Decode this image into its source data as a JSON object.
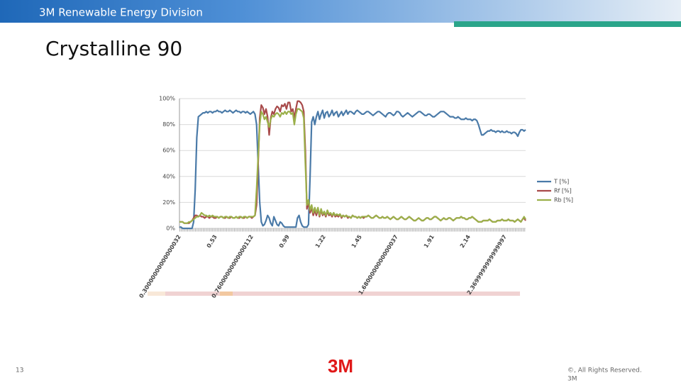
{
  "slide": {
    "banner": "3M Renewable Energy Division",
    "title": "Crystalline 90",
    "page_number": "13",
    "logo": "3M",
    "copyright": "©, All Rights Reserved.",
    "copyright_line2": "3M"
  },
  "chart_data": {
    "type": "line",
    "categories": [
      "0.30000000000000032",
      null,
      null,
      null,
      null,
      null,
      null,
      null,
      null,
      null,
      null,
      null,
      null,
      null,
      null,
      null,
      null,
      null,
      null,
      null,
      null,
      null,
      null,
      "0.53",
      null,
      null,
      null,
      null,
      null,
      null,
      null,
      null,
      null,
      null,
      null,
      null,
      null,
      null,
      null,
      null,
      null,
      null,
      null,
      null,
      null,
      null,
      "0.76000000000000112",
      null,
      null,
      null,
      null,
      null,
      null,
      null,
      null,
      null,
      null,
      null,
      null,
      null,
      null,
      null,
      null,
      null,
      null,
      null,
      null,
      null,
      null,
      "0.99",
      null,
      null,
      null,
      null,
      null,
      null,
      null,
      null,
      null,
      null,
      null,
      null,
      null,
      null,
      null,
      null,
      null,
      null,
      null,
      null,
      null,
      null,
      "1.22",
      null,
      null,
      null,
      null,
      null,
      null,
      null,
      null,
      null,
      null,
      null,
      null,
      null,
      null,
      null,
      null,
      null,
      null,
      null,
      null,
      null,
      null,
      "1.45",
      null,
      null,
      null,
      null,
      null,
      null,
      null,
      null,
      null,
      null,
      null,
      null,
      null,
      null,
      null,
      null,
      null,
      null,
      null,
      null,
      null,
      null,
      "1.6800000000000037",
      null,
      null,
      null,
      null,
      null,
      null,
      null,
      null,
      null,
      null,
      null,
      null,
      null,
      null,
      null,
      null,
      null,
      null,
      null,
      null,
      null,
      null,
      "1.91",
      null,
      null,
      null,
      null,
      null,
      null,
      null,
      null,
      null,
      null,
      null,
      null,
      null,
      null,
      null,
      null,
      null,
      null,
      null,
      null,
      null,
      null,
      "2.14",
      null,
      null,
      null,
      null,
      null,
      null,
      null,
      null,
      null,
      null,
      null,
      null,
      null,
      null,
      null,
      null,
      null,
      null,
      null,
      null,
      null,
      null,
      "2.3699999999999997",
      null,
      null,
      null,
      null,
      null,
      null,
      null,
      null,
      null,
      null,
      null,
      null,
      null
    ],
    "series": [
      {
        "name": "T [%]",
        "color": "#4a7aa8",
        "values": [
          1,
          1,
          0,
          0,
          0,
          0,
          0,
          0,
          0,
          5,
          30,
          70,
          86,
          87,
          88,
          89,
          89,
          90,
          89,
          90,
          90,
          89,
          90,
          90,
          91,
          90,
          90,
          89,
          90,
          91,
          90,
          90,
          91,
          90,
          89,
          90,
          91,
          90,
          90,
          89,
          90,
          90,
          89,
          90,
          89,
          88,
          89,
          90,
          88,
          80,
          50,
          20,
          5,
          2,
          3,
          6,
          10,
          8,
          4,
          2,
          9,
          6,
          3,
          2,
          5,
          4,
          2,
          1,
          1,
          1,
          1,
          1,
          1,
          1,
          1,
          8,
          10,
          5,
          2,
          1,
          1,
          1,
          3,
          40,
          82,
          86,
          80,
          86,
          90,
          84,
          88,
          91,
          85,
          89,
          90,
          86,
          88,
          91,
          87,
          89,
          90,
          86,
          88,
          90,
          87,
          89,
          91,
          88,
          90,
          90,
          89,
          88,
          90,
          91,
          90,
          89,
          88,
          88,
          89,
          90,
          90,
          89,
          88,
          87,
          88,
          89,
          90,
          90,
          89,
          88,
          87,
          86,
          88,
          89,
          89,
          88,
          87,
          88,
          90,
          90,
          89,
          87,
          86,
          87,
          88,
          89,
          88,
          87,
          86,
          87,
          88,
          89,
          90,
          90,
          89,
          88,
          87,
          87,
          88,
          88,
          87,
          86,
          86,
          87,
          88,
          89,
          90,
          90,
          90,
          89,
          88,
          87,
          86,
          86,
          86,
          85,
          85,
          86,
          85,
          84,
          84,
          84,
          85,
          84,
          84,
          84,
          83,
          84,
          84,
          83,
          80,
          76,
          72,
          72,
          73,
          74,
          75,
          75,
          76,
          75,
          75,
          74,
          75,
          75,
          74,
          75,
          74,
          74,
          75,
          74,
          74,
          73,
          74,
          74,
          73,
          71,
          74,
          76,
          76,
          75,
          76
        ]
      },
      {
        "name": "Rf [%]",
        "color": "#a84a4a",
        "values": [
          5,
          5,
          5,
          4,
          4,
          4,
          4,
          5,
          6,
          8,
          10,
          10,
          9,
          10,
          9,
          9,
          8,
          9,
          9,
          8,
          9,
          9,
          8,
          8,
          9,
          8,
          9,
          9,
          8,
          8,
          9,
          8,
          8,
          9,
          8,
          8,
          9,
          8,
          8,
          9,
          8,
          8,
          9,
          8,
          9,
          9,
          8,
          9,
          10,
          18,
          50,
          85,
          95,
          93,
          88,
          92,
          86,
          72,
          85,
          90,
          88,
          92,
          94,
          93,
          90,
          95,
          94,
          96,
          92,
          97,
          97,
          90,
          92,
          85,
          92,
          98,
          98,
          97,
          95,
          90,
          60,
          15,
          20,
          12,
          16,
          10,
          14,
          10,
          15,
          9,
          14,
          10,
          12,
          9,
          13,
          10,
          11,
          9,
          12,
          9,
          10,
          9,
          11,
          8,
          10,
          9,
          10,
          8,
          9,
          8,
          10,
          9,
          9,
          8,
          9,
          8,
          9,
          8,
          9,
          9,
          10,
          9,
          8,
          8,
          9,
          10,
          9,
          8,
          8,
          9,
          8,
          8,
          9,
          8,
          7,
          8,
          9,
          8,
          7,
          7,
          8,
          9,
          8,
          7,
          7,
          8,
          9,
          8,
          7,
          6,
          6,
          7,
          8,
          7,
          6,
          6,
          7,
          8,
          8,
          7,
          7,
          8,
          9,
          9,
          8,
          7,
          6,
          7,
          8,
          7,
          7,
          8,
          8,
          7,
          6,
          7,
          8,
          8,
          8,
          9,
          8,
          8,
          7,
          7,
          8,
          8,
          9,
          8,
          7,
          6,
          5,
          5,
          5,
          6,
          6,
          6,
          6,
          7,
          6,
          5,
          5,
          5,
          6,
          6,
          6,
          7,
          6,
          6,
          6,
          7,
          6,
          6,
          6,
          5,
          6,
          7,
          6,
          5,
          7,
          8,
          6
        ]
      },
      {
        "name": "Rb [%]",
        "color": "#9bb04a",
        "values": [
          5,
          5,
          5,
          4,
          4,
          4,
          5,
          5,
          6,
          7,
          8,
          9,
          9,
          10,
          12,
          11,
          10,
          10,
          9,
          10,
          9,
          10,
          9,
          9,
          9,
          8,
          9,
          9,
          8,
          9,
          9,
          8,
          9,
          9,
          8,
          8,
          9,
          8,
          9,
          9,
          8,
          9,
          9,
          8,
          9,
          9,
          9,
          9,
          10,
          30,
          55,
          80,
          90,
          88,
          84,
          86,
          82,
          78,
          84,
          87,
          86,
          88,
          89,
          88,
          86,
          89,
          88,
          90,
          88,
          90,
          90,
          88,
          89,
          80,
          88,
          92,
          92,
          91,
          90,
          85,
          50,
          18,
          22,
          14,
          18,
          12,
          16,
          12,
          16,
          10,
          15,
          11,
          13,
          10,
          14,
          11,
          12,
          10,
          12,
          10,
          11,
          10,
          11,
          9,
          10,
          9,
          10,
          9,
          9,
          8,
          10,
          9,
          9,
          8,
          9,
          8,
          9,
          9,
          9,
          9,
          10,
          9,
          8,
          8,
          9,
          10,
          9,
          8,
          8,
          9,
          8,
          8,
          9,
          8,
          7,
          8,
          9,
          8,
          7,
          7,
          8,
          9,
          8,
          7,
          7,
          8,
          9,
          8,
          7,
          6,
          6,
          7,
          8,
          7,
          6,
          6,
          7,
          8,
          8,
          7,
          7,
          8,
          9,
          9,
          8,
          7,
          6,
          7,
          8,
          7,
          7,
          8,
          8,
          7,
          6,
          7,
          8,
          8,
          8,
          9,
          8,
          8,
          7,
          7,
          8,
          8,
          9,
          8,
          7,
          6,
          5,
          5,
          5,
          6,
          6,
          6,
          6,
          7,
          6,
          5,
          5,
          5,
          6,
          6,
          6,
          7,
          6,
          6,
          6,
          7,
          6,
          6,
          6,
          5,
          6,
          7,
          6,
          5,
          7,
          9,
          7
        ]
      }
    ],
    "ylim": [
      0,
      100
    ],
    "yticks": [
      {
        "value": 0,
        "label": "0%"
      },
      {
        "value": 20,
        "label": "20%"
      },
      {
        "value": 40,
        "label": "40%"
      },
      {
        "value": 60,
        "label": "60%"
      },
      {
        "value": 80,
        "label": "80%"
      },
      {
        "value": 100,
        "label": "100%"
      }
    ],
    "grid": true,
    "legend": "right"
  }
}
